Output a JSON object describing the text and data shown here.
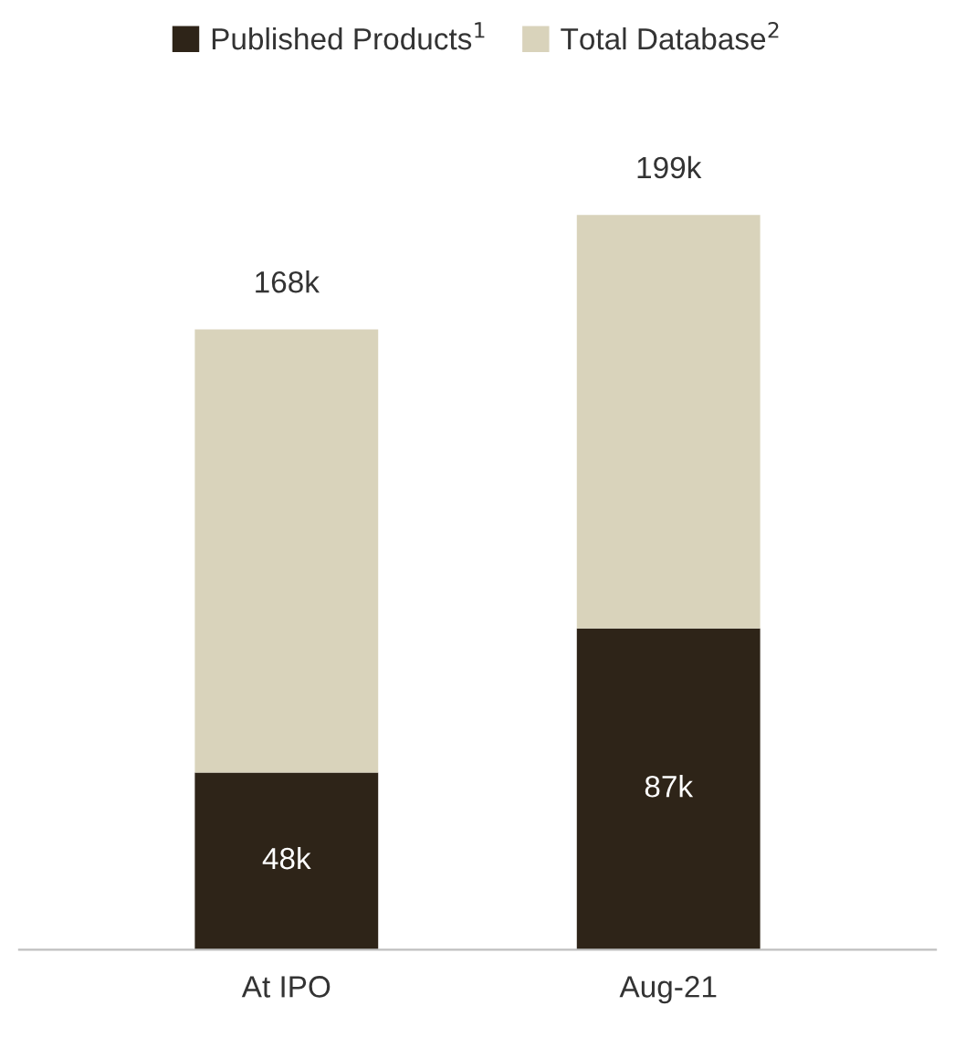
{
  "chart_data": {
    "type": "bar",
    "stacked": true,
    "categories": [
      "At IPO",
      "Aug-21"
    ],
    "series": [
      {
        "name": "Published Products$^{1}$",
        "color": "#2e2418",
        "values": [
          48,
          87
        ],
        "value_labels": [
          "48k",
          "87k"
        ]
      },
      {
        "name": "Total Database$^{2}$",
        "color": "#d9d3bb",
        "values": [
          120,
          112
        ],
        "value_labels": [
          null,
          null
        ]
      }
    ],
    "totals": [
      "168k",
      "199k"
    ],
    "legend": "top",
    "grid": false,
    "tick_labels": "x"
  }
}
